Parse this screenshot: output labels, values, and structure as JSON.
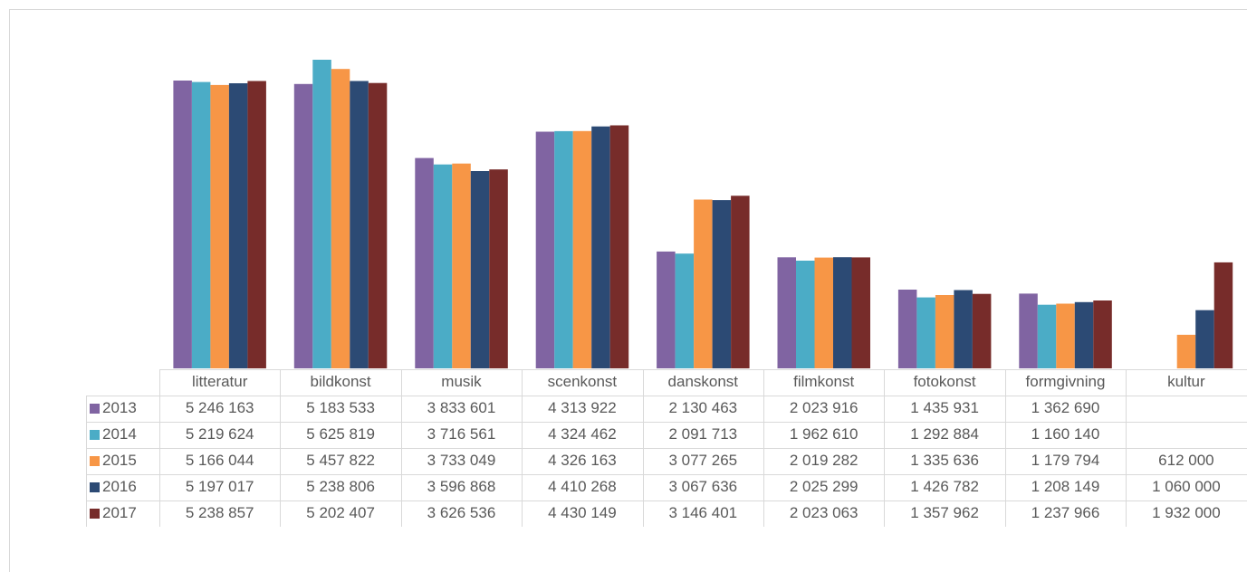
{
  "chart_data": {
    "type": "bar",
    "title": "",
    "xlabel": "",
    "ylabel": "",
    "ylim": [
      0,
      6000000
    ],
    "grid": false,
    "legend": "table",
    "categories": [
      "litteratur",
      "bildkonst",
      "musik",
      "scenkonst",
      "danskonst",
      "filmkonst",
      "fotokonst",
      "formgivning",
      "kultur"
    ],
    "series": [
      {
        "name": "2013",
        "color": "#8064a2",
        "values": [
          5246163,
          5183533,
          3833601,
          4313922,
          2130463,
          2023916,
          1435931,
          1362690,
          null
        ],
        "labels": [
          "5 246 163",
          "5 183 533",
          "3 833 601",
          "4 313 922",
          "2 130 463",
          "2 023 916",
          "1 435 931",
          "1 362 690",
          ""
        ]
      },
      {
        "name": "2014",
        "color": "#4bacc6",
        "values": [
          5219624,
          5625819,
          3716561,
          4324462,
          2091713,
          1962610,
          1292884,
          1160140,
          null
        ],
        "labels": [
          "5 219 624",
          "5 625 819",
          "3 716 561",
          "4 324 462",
          "2 091 713",
          "1 962 610",
          "1 292 884",
          "1 160 140",
          ""
        ]
      },
      {
        "name": "2015",
        "color": "#f79646",
        "values": [
          5166044,
          5457822,
          3733049,
          4326163,
          3077265,
          2019282,
          1335636,
          1179794,
          612000
        ],
        "labels": [
          "5 166 044",
          "5 457 822",
          "3 733 049",
          "4 326 163",
          "3 077 265",
          "2 019 282",
          "1 335 636",
          "1 179 794",
          "612 000"
        ]
      },
      {
        "name": "2016",
        "color": "#2c4a74",
        "values": [
          5197017,
          5238806,
          3596868,
          4410268,
          3067636,
          2025299,
          1426782,
          1208149,
          1060000
        ],
        "labels": [
          "5 197 017",
          "5 238 806",
          "3 596 868",
          "4 410 268",
          "3 067 636",
          "2 025 299",
          "1 426 782",
          "1 208 149",
          "1 060 000"
        ]
      },
      {
        "name": "2017",
        "color": "#772c2a",
        "values": [
          5238857,
          5202407,
          3626536,
          4430149,
          3146401,
          2023063,
          1357962,
          1237966,
          1932000
        ],
        "labels": [
          "5 238 857",
          "5 202 407",
          "3 626 536",
          "4 430 149",
          "3 146 401",
          "2 023 063",
          "1 357 962",
          "1 237 966",
          "1 932 000"
        ]
      }
    ]
  }
}
